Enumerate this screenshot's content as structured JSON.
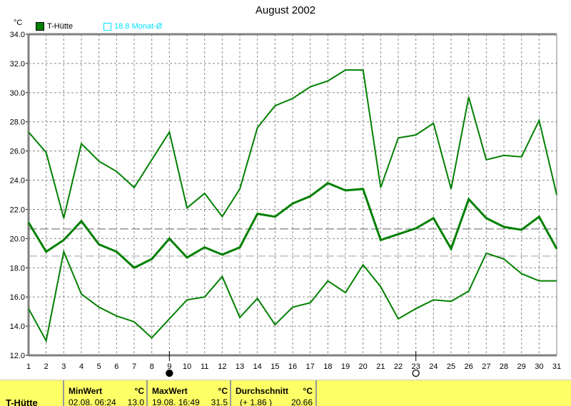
{
  "chart_data": {
    "type": "line",
    "title": "August 2002",
    "ylabel": "°C",
    "ylim": [
      12,
      34
    ],
    "yticks": [
      "12.0",
      "14.0",
      "16.0",
      "18.0",
      "20.0",
      "22.0",
      "24.0",
      "26.0",
      "28.0",
      "30.0",
      "32.0",
      "34.0"
    ],
    "x": [
      1,
      2,
      3,
      4,
      5,
      6,
      7,
      8,
      9,
      10,
      11,
      12,
      13,
      14,
      15,
      16,
      17,
      18,
      19,
      20,
      21,
      22,
      23,
      24,
      25,
      26,
      27,
      28,
      29,
      30,
      31
    ],
    "grid": true,
    "legend": [
      {
        "label": "T-Hütte",
        "color": "#008000"
      },
      {
        "label": "18.8 Monat-Ø",
        "color": "#00e0ff"
      }
    ],
    "series": [
      {
        "role": "max",
        "color": "#008000",
        "values": [
          27.3,
          25.9,
          21.4,
          26.5,
          25.3,
          24.6,
          23.5,
          25.4,
          27.3,
          22.1,
          23.1,
          21.5,
          23.4,
          27.6,
          29.1,
          29.6,
          30.4,
          30.8,
          31.55,
          31.55,
          23.5,
          26.9,
          27.1,
          27.9,
          23.4,
          29.7,
          25.4,
          25.7,
          25.6,
          28.1,
          23.0
        ]
      },
      {
        "role": "mean",
        "color": "#008000",
        "values": [
          21.1,
          19.1,
          19.9,
          21.2,
          19.6,
          19.1,
          18.0,
          18.6,
          20.0,
          18.7,
          19.4,
          18.9,
          19.4,
          21.7,
          21.5,
          22.4,
          22.9,
          23.8,
          23.3,
          23.4,
          19.9,
          20.3,
          20.7,
          21.4,
          19.3,
          22.7,
          21.4,
          20.8,
          20.6,
          21.5,
          19.3
        ]
      },
      {
        "role": "min",
        "color": "#008000",
        "values": [
          15.2,
          13.0,
          19.1,
          16.2,
          15.3,
          14.7,
          14.3,
          13.2,
          14.5,
          15.8,
          16.0,
          17.4,
          14.6,
          15.9,
          14.1,
          15.3,
          15.6,
          17.1,
          16.3,
          18.2,
          16.7,
          14.5,
          15.2,
          15.8,
          15.7,
          16.4,
          19.0,
          18.6,
          17.6,
          17.1,
          17.1
        ]
      }
    ],
    "reference_lines": [
      {
        "value": 20.66,
        "color": "#606060",
        "style": "dashed"
      },
      {
        "value": 18.8,
        "color": "#a0a0a0",
        "style": "dashed"
      }
    ],
    "markers": [
      {
        "x": 9,
        "symbol": "new-moon-filled-circle"
      },
      {
        "x": 23,
        "symbol": "full-moon-open-circle"
      }
    ]
  },
  "table": {
    "station": "T-Hütte",
    "min": {
      "label": "MinWert",
      "unit": "°C",
      "time": "02.08.  06:24",
      "value": "13.0"
    },
    "max": {
      "label": "MaxWert",
      "unit": "°C",
      "time": "19.08.  16:49",
      "value": "31.5"
    },
    "avg": {
      "label": "Durchschnitt",
      "unit": "°C",
      "delta": "(+ 1.86 )",
      "value": "20.66"
    }
  }
}
